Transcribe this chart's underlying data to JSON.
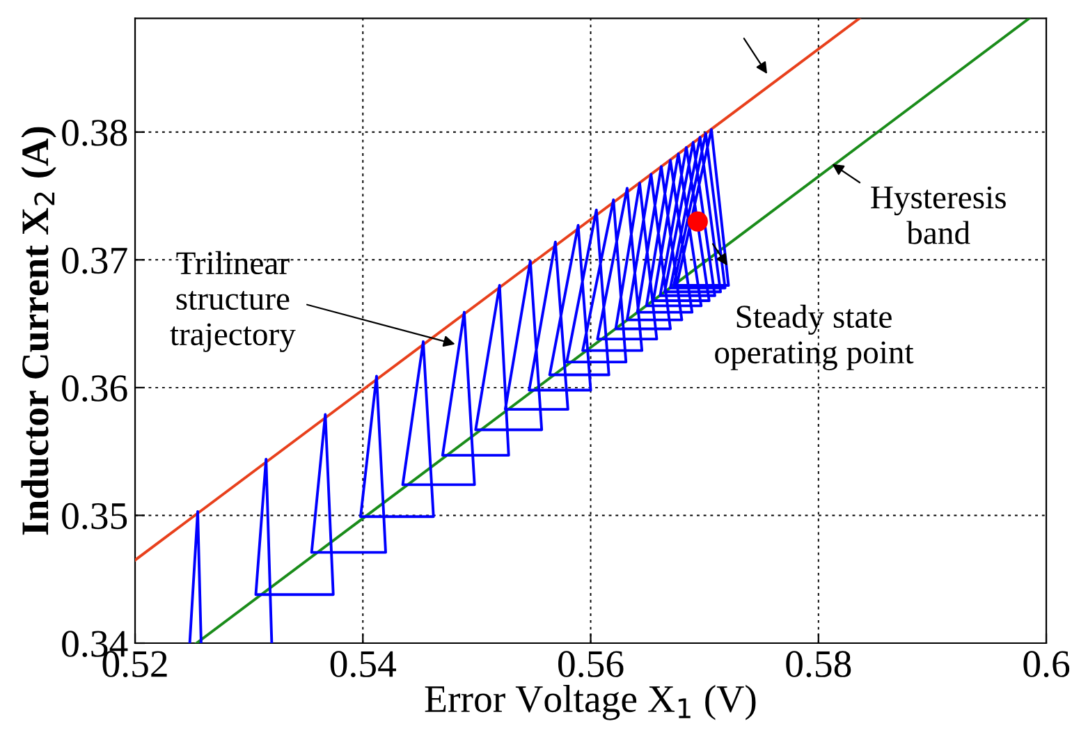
{
  "chart_data": {
    "type": "line",
    "xlabel": "Error Voltage X$_{1}$ (V)",
    "ylabel": "Inductor Current X$_{2}$ (A)",
    "xlim": [
      0.52,
      0.6
    ],
    "ylim": [
      0.34,
      0.3889
    ],
    "xticks": [
      0.52,
      0.54,
      0.56,
      0.58,
      0.6
    ],
    "yticks": [
      0.34,
      0.35,
      0.36,
      0.37,
      0.38
    ],
    "grid": true,
    "series": [
      {
        "color": "#e8401c",
        "x": [
          0.52,
          0.5836
        ],
        "values": [
          0.3465,
          0.3889
        ]
      },
      {
        "color": "#1a8c1a",
        "x": [
          0.5254,
          0.5985
        ],
        "values": [
          0.34,
          0.3889
        ]
      },
      {
        "color": "#0000ff",
        "x": [
          0.5676,
          0.5706,
          0.5721,
          0.5673,
          0.5701,
          0.5718,
          0.567,
          0.5696,
          0.5714,
          0.5665,
          0.569,
          0.5709,
          0.5661,
          0.5684,
          0.5704,
          0.5655,
          0.5677,
          0.5697,
          0.5649,
          0.567,
          0.5689,
          0.5641,
          0.5662,
          0.568,
          0.5632,
          0.5653,
          0.567,
          0.5622,
          0.5643,
          0.5658,
          0.5606,
          0.5632,
          0.5645,
          0.5593,
          0.562,
          0.5631,
          0.5579,
          0.5605,
          0.5616,
          0.5564,
          0.5589,
          0.56,
          0.5546,
          0.5569,
          0.558,
          0.5525,
          0.5547,
          0.5557,
          0.5499,
          0.552,
          0.5528,
          0.547,
          0.5489,
          0.5498,
          0.5435,
          0.5453,
          0.5462,
          0.5398,
          0.5412,
          0.542,
          0.5355,
          0.5367,
          0.5374,
          0.5306,
          0.5315,
          0.532,
          0.529,
          0.5248,
          0.5255,
          0.5258
        ],
        "values": [
          0.3682,
          0.3802,
          0.368,
          0.368,
          0.3799,
          0.3678,
          0.3678,
          0.3796,
          0.3675,
          0.3675,
          0.3792,
          0.3672,
          0.3672,
          0.3788,
          0.3668,
          0.3668,
          0.3783,
          0.3664,
          0.3664,
          0.3778,
          0.3659,
          0.3659,
          0.3773,
          0.3653,
          0.3653,
          0.3767,
          0.3646,
          0.3646,
          0.376,
          0.3638,
          0.3638,
          0.3756,
          0.3629,
          0.3629,
          0.3747,
          0.362,
          0.362,
          0.3739,
          0.361,
          0.361,
          0.3727,
          0.3598,
          0.3598,
          0.3714,
          0.3583,
          0.3583,
          0.3699,
          0.3567,
          0.3567,
          0.368,
          0.3547,
          0.3547,
          0.3659,
          0.3524,
          0.3524,
          0.3636,
          0.3499,
          0.3499,
          0.3609,
          0.3471,
          0.3471,
          0.3579,
          0.3438,
          0.3438,
          0.3544,
          0.34,
          null,
          0.34,
          0.3503,
          0.34
        ]
      },
      {
        "type": "scatter",
        "color": "#ff0000",
        "x": [
          0.5694
        ],
        "values": [
          0.373
        ]
      }
    ],
    "annotations": [
      {
        "text": "Hysteresis\nband",
        "x": 0.5812,
        "y": 0.3775
      },
      {
        "text": "Trilinear\nstructure\ntrajectory",
        "x": 0.5481,
        "y": 0.3634
      },
      {
        "text": "Steady state\noperating point",
        "x": 0.5694,
        "y": 0.373
      }
    ]
  }
}
